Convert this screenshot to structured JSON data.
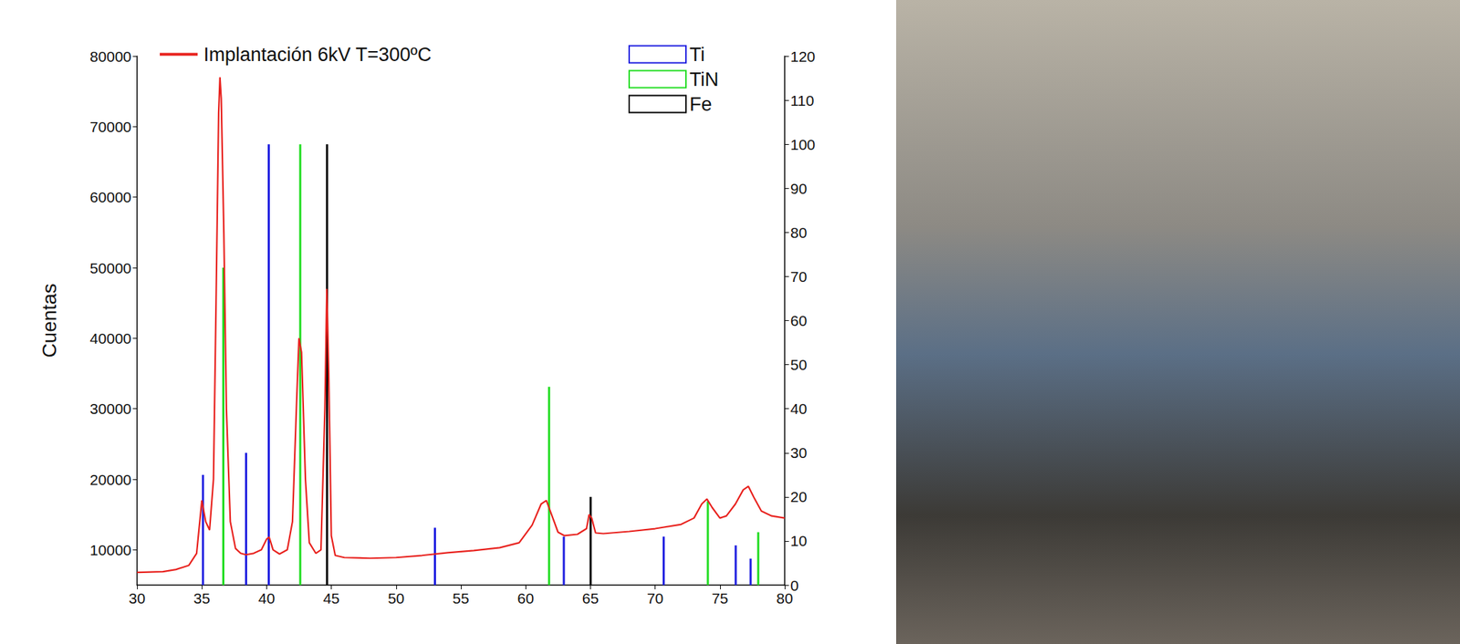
{
  "chart_data": {
    "type": "line",
    "y_label": "Cuentas",
    "xlim": [
      30,
      80
    ],
    "xticks": [
      30,
      35,
      40,
      45,
      50,
      55,
      60,
      65,
      70,
      75,
      80
    ],
    "ylim": [
      5000,
      80000
    ],
    "yticks": [
      10000,
      20000,
      30000,
      40000,
      50000,
      60000,
      70000,
      80000
    ],
    "y2lim": [
      0,
      120
    ],
    "y2ticks": [
      0,
      10,
      20,
      30,
      40,
      50,
      60,
      70,
      80,
      90,
      100,
      110,
      120
    ],
    "legend": "top",
    "grid": false,
    "series": [
      {
        "name": "Implantación 6kV T=300ºC",
        "type": "line",
        "color": "#e8211d",
        "x": [
          30,
          32,
          33,
          34,
          34.6,
          35.0,
          35.3,
          35.6,
          35.9,
          36.1,
          36.3,
          36.4,
          36.5,
          36.7,
          36.9,
          37.2,
          37.6,
          38.0,
          38.4,
          39.0,
          39.6,
          40.0,
          40.2,
          40.5,
          41.0,
          41.6,
          42.0,
          42.3,
          42.5,
          42.7,
          43.0,
          43.3,
          43.8,
          44.2,
          44.5,
          44.65,
          44.8,
          45.0,
          45.3,
          46,
          48,
          50,
          52,
          54,
          56,
          58,
          59.5,
          60.5,
          61.2,
          61.6,
          62.0,
          62.5,
          63.0,
          64.0,
          64.7,
          64.9,
          65.1,
          65.4,
          66,
          68,
          70,
          72,
          73,
          73.6,
          74.0,
          74.4,
          75.0,
          75.5,
          76.2,
          76.8,
          77.2,
          77.6,
          78.2,
          79,
          80
        ],
        "values": [
          6800,
          6900,
          7200,
          7800,
          9500,
          17000,
          14000,
          12800,
          20000,
          45000,
          72000,
          77000,
          74000,
          55000,
          30000,
          14000,
          10200,
          9500,
          9300,
          9500,
          10000,
          11500,
          11800,
          10000,
          9400,
          10000,
          14000,
          30000,
          40000,
          38000,
          20000,
          11000,
          9500,
          10000,
          30000,
          47000,
          35000,
          12000,
          9200,
          8900,
          8800,
          8900,
          9200,
          9600,
          9900,
          10300,
          11000,
          13500,
          16500,
          17000,
          15000,
          12500,
          12000,
          12200,
          13000,
          15000,
          14500,
          12400,
          12300,
          12600,
          13000,
          13600,
          14500,
          16500,
          17200,
          16000,
          14500,
          14800,
          16500,
          18500,
          19000,
          17500,
          15500,
          14800,
          14500
        ]
      },
      {
        "name": "Ti",
        "type": "bar",
        "axis": "y2",
        "color": "#1f1fe0",
        "x": [
          35.09,
          38.42,
          40.17,
          53.0,
          62.95,
          70.66,
          76.22,
          77.37
        ],
        "values": [
          25,
          30,
          100,
          13,
          11,
          11,
          9,
          6
        ]
      },
      {
        "name": "TiN",
        "type": "bar",
        "axis": "y2",
        "color": "#22dd22",
        "x": [
          36.66,
          42.6,
          61.81,
          74.07,
          77.96
        ],
        "values": [
          72,
          100,
          45,
          19,
          12
        ]
      },
      {
        "name": "Fe",
        "type": "bar",
        "axis": "y2",
        "color": "#000000",
        "x": [
          44.67,
          65.02
        ],
        "values": [
          100,
          20
        ]
      }
    ]
  }
}
